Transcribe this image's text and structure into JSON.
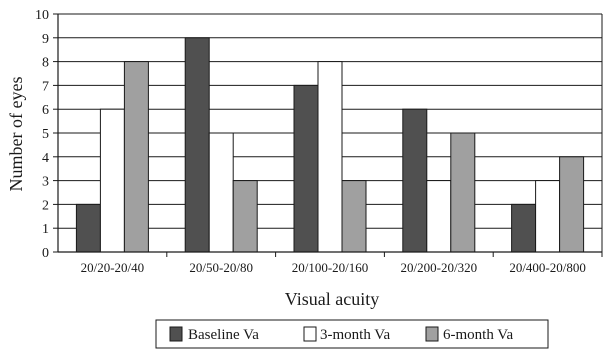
{
  "chart_data": {
    "type": "bar",
    "xlabel": "Visual acuity",
    "ylabel": "Number of eyes",
    "ylim": [
      0,
      10
    ],
    "yticks": [
      0,
      1,
      2,
      3,
      4,
      5,
      6,
      7,
      8,
      9,
      10
    ],
    "grid": true,
    "legend_position": "bottom",
    "categories": [
      "20/20-20/40",
      "20/50-20/80",
      "20/100-20/160",
      "20/200-20/320",
      "20/400-20/800"
    ],
    "series": [
      {
        "name": "Baseline Va",
        "color": "#505050",
        "values": [
          2,
          9,
          7,
          6,
          2
        ]
      },
      {
        "name": "3-month Va",
        "color": "#ffffff",
        "values": [
          6,
          5,
          8,
          3,
          3
        ]
      },
      {
        "name": "6-month Va",
        "color": "#a0a0a0",
        "values": [
          8,
          3,
          3,
          5,
          4
        ]
      }
    ]
  }
}
